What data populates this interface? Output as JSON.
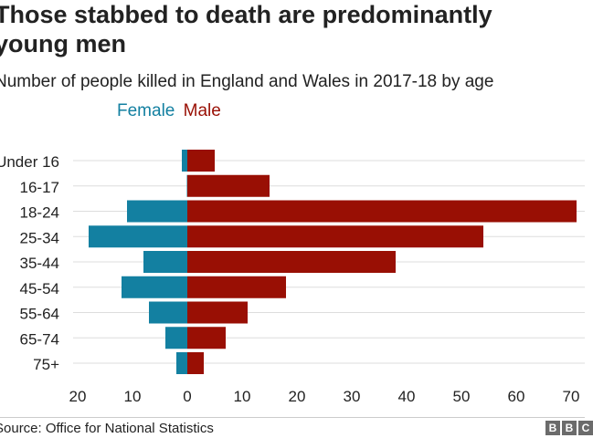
{
  "chart_data": {
    "type": "bar",
    "orientation": "horizontal-population-pyramid",
    "title_line1": "Those stabbed to death are predominantly",
    "title_line2": "young men",
    "subtitle": "Number of people killed in England and Wales in 2017-18 by age",
    "categories": [
      "Under 16",
      "16-17",
      "18-24",
      "25-34",
      "35-44",
      "45-54",
      "55-64",
      "65-74",
      "75+"
    ],
    "series": [
      {
        "name": "Female",
        "color": "#1380A1",
        "values": [
          1,
          0,
          11,
          18,
          8,
          12,
          7,
          4,
          2
        ]
      },
      {
        "name": "Male",
        "color": "#990F04",
        "values": [
          5,
          15,
          71,
          54,
          38,
          18,
          11,
          7,
          3
        ]
      }
    ],
    "x_ticks": [
      "20",
      "10",
      "0",
      "10",
      "20",
      "30",
      "40",
      "50",
      "60",
      "70"
    ],
    "xlim": [
      -20,
      70
    ],
    "grid": true
  },
  "source": "Source: Office for National Statistics",
  "logo": [
    "B",
    "B",
    "C"
  ]
}
